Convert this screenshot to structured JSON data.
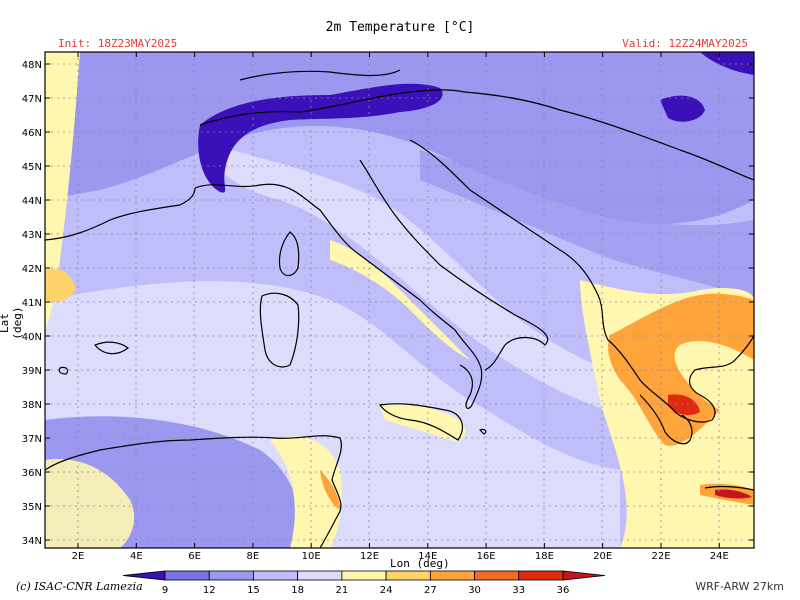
{
  "title": "2m Temperature [°C]",
  "init": "Init: 18Z23MAY2025",
  "valid": "Valid: 12Z24MAY2025",
  "axes": {
    "y_label": "Lat (deg)",
    "x_label": "Lon (deg)",
    "lat_ticks": [
      "48N",
      "47N",
      "46N",
      "45N",
      "44N",
      "43N",
      "42N",
      "41N",
      "40N",
      "39N",
      "38N",
      "37N",
      "36N",
      "35N",
      "34N"
    ],
    "lon_ticks": [
      "2E",
      "4E",
      "6E",
      "8E",
      "10E",
      "12E",
      "14E",
      "16E",
      "18E",
      "20E",
      "22E",
      "24E"
    ]
  },
  "colorbar": {
    "labels": [
      "9",
      "12",
      "15",
      "18",
      "21",
      "24",
      "27",
      "30",
      "33",
      "36"
    ],
    "colors": [
      "#3a10b8",
      "#7a73e8",
      "#9c98f0",
      "#c0befa",
      "#dedcfc",
      "#fff6b0",
      "#ffd36a",
      "#ffa43a",
      "#f06a20",
      "#e02a10",
      "#c4141c"
    ]
  },
  "credit": "(c) ISAC-CNR Lamezia",
  "model": "WRF-ARW 27km"
}
